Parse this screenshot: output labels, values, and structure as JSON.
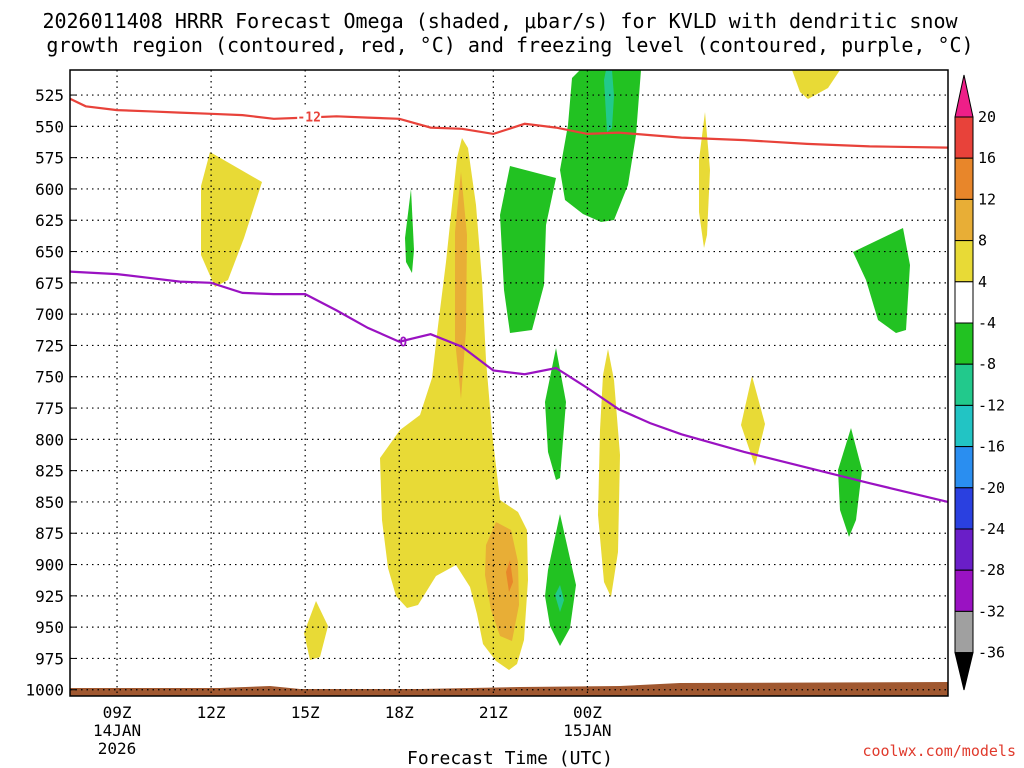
{
  "chart_data": {
    "type": "contour",
    "title_line1": "2026011408 HRRR Forecast Omega (shaded, μbar/s) for KVLD with dendritic snow",
    "title_line2": "growth region (contoured, red, °C) and freezing level (contoured, purple, °C)",
    "xlabel": "Forecast Time (UTC)",
    "credit": "coolwx.com/models",
    "x_range_hours": [
      -1.5,
      26.5
    ],
    "x_ticks": [
      {
        "hour": 0,
        "label": "09Z",
        "sub1": "14JAN",
        "sub2": "2026"
      },
      {
        "hour": 3,
        "label": "12Z"
      },
      {
        "hour": 6,
        "label": "15Z"
      },
      {
        "hour": 9,
        "label": "18Z"
      },
      {
        "hour": 12,
        "label": "21Z"
      },
      {
        "hour": 15,
        "label": "00Z",
        "sub1": "15JAN"
      }
    ],
    "y_pressure_levels_mb": [
      525,
      550,
      575,
      600,
      625,
      650,
      675,
      700,
      725,
      750,
      775,
      800,
      825,
      850,
      875,
      900,
      925,
      950,
      975,
      1000
    ],
    "y_range_mb": [
      505,
      1005
    ],
    "colorbar": {
      "labels": [
        "20",
        "16",
        "12",
        "8",
        "4",
        "-4",
        "-8",
        "-12",
        "-16",
        "-20",
        "-24",
        "-28",
        "-32",
        "-36"
      ],
      "colors": [
        "#ee1f88",
        "#e8423a",
        "#e8862a",
        "#e8ae36",
        "#e8da36",
        "#ffffff",
        "#22c222",
        "#22c98c",
        "#22c4c4",
        "#2a8ef0",
        "#2a40e0",
        "#6a1ec8",
        "#9a12c2",
        "#a0a0a0",
        "#000000"
      ]
    },
    "series": [
      {
        "name": "dendritic growth (-12 °C)",
        "label": "-12",
        "color": "#e8423a",
        "points": [
          [
            -1.5,
            528
          ],
          [
            -1,
            534
          ],
          [
            0,
            537
          ],
          [
            1,
            538
          ],
          [
            2,
            539
          ],
          [
            3,
            540
          ],
          [
            4,
            541
          ],
          [
            5,
            544
          ],
          [
            6,
            543
          ],
          [
            7,
            542
          ],
          [
            8,
            543
          ],
          [
            9,
            544
          ],
          [
            10,
            551
          ],
          [
            11,
            552
          ],
          [
            12,
            556
          ],
          [
            13,
            548
          ],
          [
            14,
            551
          ],
          [
            15,
            556
          ],
          [
            16,
            555
          ],
          [
            17,
            557
          ],
          [
            18,
            559
          ],
          [
            19,
            560
          ],
          [
            20,
            561
          ],
          [
            22,
            564
          ],
          [
            24,
            566
          ],
          [
            26.5,
            567
          ]
        ]
      },
      {
        "name": "freezing level (0 °C)",
        "label": "0",
        "color": "#9a12c2",
        "points": [
          [
            -1.5,
            666
          ],
          [
            0,
            668
          ],
          [
            1,
            671
          ],
          [
            2,
            674
          ],
          [
            3,
            675
          ],
          [
            4,
            683
          ],
          [
            5,
            684
          ],
          [
            6,
            684
          ],
          [
            7,
            697
          ],
          [
            8,
            711
          ],
          [
            9,
            722
          ],
          [
            10,
            716
          ],
          [
            11,
            726
          ],
          [
            12,
            745
          ],
          [
            13,
            748
          ],
          [
            14,
            743
          ],
          [
            15,
            759
          ],
          [
            16,
            776
          ],
          [
            17,
            787
          ],
          [
            18,
            796
          ],
          [
            20,
            810
          ],
          [
            24,
            835
          ],
          [
            26.5,
            850
          ]
        ]
      }
    ]
  }
}
